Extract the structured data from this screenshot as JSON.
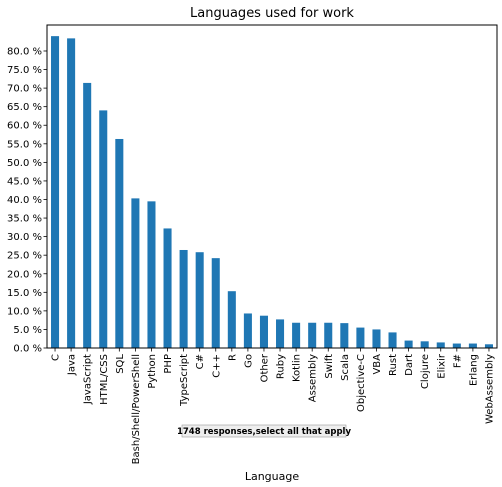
{
  "chart_data": {
    "type": "bar",
    "title": "Languages used for work",
    "xlabel": "Language",
    "ylabel": "",
    "annotation": "1748 responses,select all that apply",
    "categories": [
      "C",
      "Java",
      "JavaScript",
      "HTML/CSS",
      "SQL",
      "Bash/Shell/PowerShell",
      "Python",
      "PHP",
      "TypeScript",
      "C#",
      "C++",
      "R",
      "Go",
      "Other",
      "Ruby",
      "Kotlin",
      "Assembly",
      "Swift",
      "Scala",
      "Objective-C",
      "VBA",
      "Rust",
      "Dart",
      "Clojure",
      "Elixir",
      "F#",
      "Erlang",
      "WebAssembly"
    ],
    "values": [
      0.84,
      0.834,
      0.714,
      0.64,
      0.563,
      0.403,
      0.395,
      0.322,
      0.264,
      0.258,
      0.242,
      0.153,
      0.093,
      0.087,
      0.077,
      0.068,
      0.068,
      0.068,
      0.067,
      0.055,
      0.05,
      0.042,
      0.02,
      0.018,
      0.015,
      0.012,
      0.012,
      0.01
    ],
    "ylim": [
      0,
      0.87
    ],
    "yticks": [
      "0.0 %",
      "5.0 %",
      "10.0 %",
      "15.0 %",
      "20.0 %",
      "25.0 %",
      "30.0 %",
      "35.0 %",
      "40.0 %",
      "45.0 %",
      "50.0 %",
      "55.0 %",
      "60.0 %",
      "65.0 %",
      "70.0 %",
      "75.0 %",
      "80.0 %"
    ],
    "ytick_values": [
      0,
      0.05,
      0.1,
      0.15,
      0.2,
      0.25,
      0.3,
      0.35,
      0.4,
      0.45,
      0.5,
      0.55,
      0.6,
      0.65,
      0.7,
      0.75,
      0.8
    ],
    "bar_color": "#1f77b4",
    "grid": false,
    "legend": "none"
  }
}
